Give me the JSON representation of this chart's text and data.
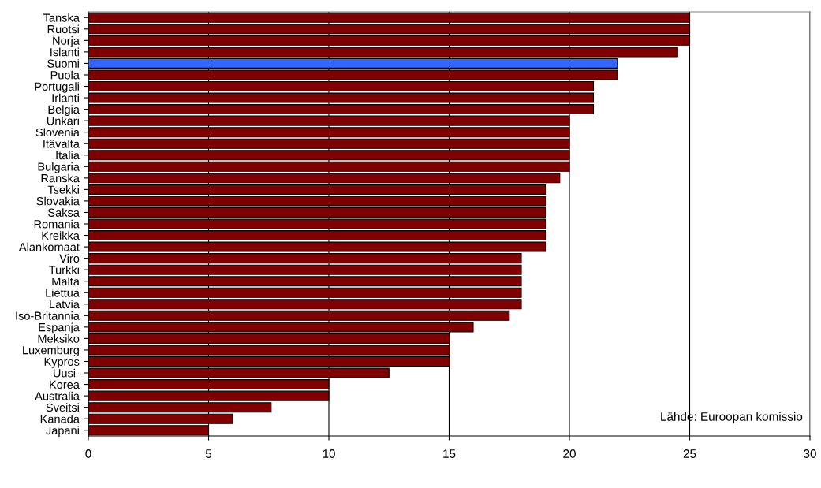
{
  "chart_data": {
    "type": "bar",
    "orientation": "horizontal",
    "categories": [
      "Tanska",
      "Ruotsi",
      "Norja",
      "Islanti",
      "Suomi",
      "Puola",
      "Portugali",
      "Irlanti",
      "Belgia",
      "Unkari",
      "Slovenia",
      "Itävalta",
      "Italia",
      "Bulgaria",
      "Ranska",
      "Tsekki",
      "Slovakia",
      "Saksa",
      "Romania",
      "Kreikka",
      "Alankomaat",
      "Viro",
      "Turkki",
      "Malta",
      "Liettua",
      "Latvia",
      "Iso-Britannia",
      "Espanja",
      "Meksiko",
      "Luxemburg",
      "Kypros",
      "Uusi-",
      "Korea",
      "Australia",
      "Sveitsi",
      "Kanada",
      "Japani"
    ],
    "values": [
      25,
      25,
      25,
      24.5,
      22,
      22,
      21,
      21,
      21,
      20,
      20,
      20,
      20,
      20,
      19.6,
      19,
      19,
      19,
      19,
      19,
      19,
      18,
      18,
      18,
      18,
      18,
      17.5,
      16,
      15,
      15,
      15,
      12.5,
      10,
      10,
      7.6,
      6,
      5
    ],
    "colors": [
      "#800000",
      "#800000",
      "#800000",
      "#800000",
      "#3366ff",
      "#800000",
      "#800000",
      "#800000",
      "#800000",
      "#800000",
      "#800000",
      "#800000",
      "#800000",
      "#800000",
      "#800000",
      "#800000",
      "#800000",
      "#800000",
      "#800000",
      "#800000",
      "#800000",
      "#800000",
      "#800000",
      "#800000",
      "#800000",
      "#800000",
      "#800000",
      "#800000",
      "#800000",
      "#800000",
      "#800000",
      "#800000",
      "#800000",
      "#800000",
      "#800000",
      "#800000",
      "#800000"
    ],
    "xlim": [
      0,
      30
    ],
    "xticks": [
      0,
      5,
      10,
      15,
      20,
      25,
      30
    ],
    "grid": "x",
    "annotations": [
      "Lähde: Euroopan komissio"
    ]
  }
}
